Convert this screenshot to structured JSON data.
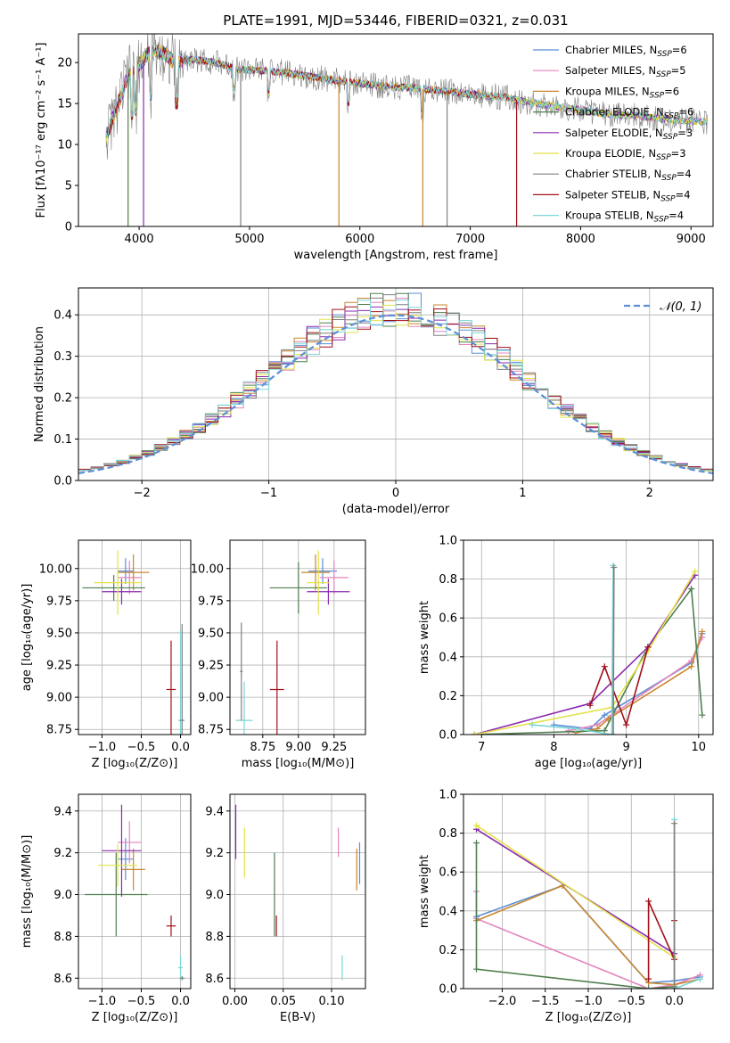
{
  "colors": {
    "Chabrier MILES": "#5b8fd6",
    "Salpeter MILES": "#e485bd",
    "Kroupa MILES": "#c8862e",
    "Chabrier ELODIE": "#4f7f4f",
    "Salpeter ELODIE": "#8b2ab0",
    "Kroupa ELODIE": "#e3e34a",
    "Chabrier STELIB": "#7f7f7f",
    "Salpeter STELIB": "#a0101a",
    "Kroupa STELIB": "#7fd6d6",
    "fit_orange": "#e07b2a",
    "normal_curve": "#5b8fd6"
  },
  "chart_data": [
    {
      "id": "spectrum",
      "type": "line",
      "title": "PLATE=1991, MJD=53446, FIBERID=0321, z=0.031",
      "xlabel": "wavelength [Angstrom, rest frame]",
      "ylabel": "Flux [fλ10⁻¹⁷ erg cm⁻² s⁻¹ A⁻¹]",
      "xlim": [
        3450,
        9200
      ],
      "ylim": [
        0,
        23.5
      ],
      "xticks": [
        4000,
        5000,
        6000,
        7000,
        8000,
        9000
      ],
      "yticks": [
        0,
        5,
        10,
        15,
        20
      ],
      "grid": false,
      "legend_position": "top-right",
      "continuum": {
        "x": [
          3700,
          3800,
          3900,
          4000,
          4100,
          4200,
          4300,
          4500,
          4700,
          4900,
          5100,
          5300,
          5500,
          5700,
          5900,
          6100,
          6300,
          6500,
          6700,
          6900,
          7100,
          7300,
          7500,
          7700,
          7900,
          8100,
          8300,
          8500,
          8700,
          8900,
          9100
        ],
        "y": [
          11,
          14.5,
          18.5,
          19.8,
          21.3,
          21.4,
          20.2,
          20.4,
          20.0,
          19.2,
          19.0,
          18.8,
          18.4,
          18.0,
          17.6,
          17.3,
          17.0,
          16.9,
          16.6,
          16.3,
          16.0,
          15.8,
          15.2,
          14.8,
          14.4,
          14.0,
          13.6,
          13.5,
          13.2,
          13.0,
          12.8
        ]
      },
      "series": [
        {
          "name": "Chabrier MILES, N_SSP=6"
        },
        {
          "name": "Salpeter MILES, N_SSP=5"
        },
        {
          "name": "Kroupa MILES, N_SSP=6"
        },
        {
          "name": "Chabrier ELODIE, N_SSP=6"
        },
        {
          "name": "Salpeter ELODIE, N_SSP=3"
        },
        {
          "name": "Kroupa ELODIE, N_SSP=3"
        },
        {
          "name": "Chabrier STELIB, N_SSP=4"
        },
        {
          "name": "Salpeter STELIB, N_SSP=4"
        },
        {
          "name": "Kroupa STELIB, N_SSP=4"
        }
      ],
      "legend_entries": [
        {
          "prefix": "Chabrier MILES, N",
          "sub": "SSP",
          "suffix": "=6"
        },
        {
          "prefix": "Salpeter MILES, N",
          "sub": "SSP",
          "suffix": "=5"
        },
        {
          "prefix": "Kroupa MILES, N",
          "sub": "SSP",
          "suffix": "=6"
        },
        {
          "prefix": "Chabrier ELODIE, N",
          "sub": "SSP",
          "suffix": "=6"
        },
        {
          "prefix": "Salpeter ELODIE, N",
          "sub": "SSP",
          "suffix": "=3"
        },
        {
          "prefix": "Kroupa ELODIE, N",
          "sub": "SSP",
          "suffix": "=3"
        },
        {
          "prefix": "Chabrier STELIB, N",
          "sub": "SSP",
          "suffix": "=4"
        },
        {
          "prefix": "Salpeter STELIB, N",
          "sub": "SSP",
          "suffix": "=4"
        },
        {
          "prefix": "Kroupa STELIB, N",
          "sub": "SSP",
          "suffix": "=4"
        }
      ]
    },
    {
      "id": "residuals",
      "type": "line",
      "xlabel": "(data-model)/error",
      "ylabel": "Normed distribution",
      "xlim": [
        -2.5,
        2.5
      ],
      "ylim": [
        0,
        0.465
      ],
      "xticks": [
        -2,
        -1,
        0,
        1,
        2
      ],
      "yticks": [
        0.0,
        0.1,
        0.2,
        0.3,
        0.4
      ],
      "grid": true,
      "legend": "𝒩(0, 1)",
      "legend_position": "top-right",
      "bins": {
        "start": -2.5,
        "width": 0.1,
        "count": 50
      }
    },
    {
      "id": "age_vs_Z",
      "type": "scatter",
      "xlabel": "Z [log₁₀(Z/Z⊙)]",
      "ylabel": "age  [log₁₀(age/yr)]",
      "xlim": [
        -1.3,
        0.13
      ],
      "ylim": [
        8.71,
        10.22
      ],
      "xticks": [
        -1.0,
        -0.5,
        0.0
      ],
      "yticks": [
        8.75,
        9.0,
        9.25,
        9.5,
        9.75,
        10.0
      ],
      "grid": true,
      "points": [
        {
          "series": "Chabrier MILES",
          "x": -0.7,
          "y": 9.98,
          "xerr": 0.1,
          "yerr": 0.1
        },
        {
          "series": "Salpeter MILES",
          "x": -0.65,
          "y": 9.93,
          "xerr": 0.15,
          "yerr": 0.13
        },
        {
          "series": "Kroupa MILES",
          "x": -0.6,
          "y": 9.97,
          "xerr": 0.2,
          "yerr": 0.14
        },
        {
          "series": "Chabrier ELODIE",
          "x": -0.85,
          "y": 9.85,
          "xerr": 0.4,
          "yerr": 0.1
        },
        {
          "series": "Salpeter ELODIE",
          "x": -0.75,
          "y": 9.82,
          "xerr": 0.25,
          "yerr": 0.1
        },
        {
          "series": "Kroupa ELODIE",
          "x": -0.8,
          "y": 9.89,
          "xerr": 0.3,
          "yerr": 0.25
        },
        {
          "series": "Salpeter STELIB",
          "x": -0.12,
          "y": 9.06,
          "xerr": 0.06,
          "yerr": 0.38
        },
        {
          "series": "Kroupa STELIB",
          "x": 0.0,
          "y": 8.82,
          "xerr": 0.03,
          "yerr": 0.7
        },
        {
          "series": "Chabrier STELIB",
          "x": 0.02,
          "y": 8.82,
          "xerr": 0.03,
          "yerr": 0.75
        }
      ]
    },
    {
      "id": "age_vs_mass",
      "type": "scatter",
      "xlabel": "mass [log₁₀(M/M⊙)]",
      "xlim": [
        8.52,
        9.47
      ],
      "ylim": [
        8.71,
        10.22
      ],
      "xticks": [
        8.75,
        9.0,
        9.25
      ],
      "yticks": [
        8.75,
        9.0,
        9.25,
        9.5,
        9.75,
        10.0
      ],
      "grid": true,
      "points": [
        {
          "series": "Chabrier MILES",
          "x": 9.17,
          "y": 9.98,
          "xerr": 0.1,
          "yerr": 0.1
        },
        {
          "series": "Salpeter MILES",
          "x": 9.25,
          "y": 9.93,
          "xerr": 0.1,
          "yerr": 0.13
        },
        {
          "series": "Kroupa MILES",
          "x": 9.12,
          "y": 9.97,
          "xerr": 0.1,
          "yerr": 0.14
        },
        {
          "series": "Chabrier ELODIE",
          "x": 9.0,
          "y": 9.85,
          "xerr": 0.2,
          "yerr": 0.2
        },
        {
          "series": "Salpeter ELODIE",
          "x": 9.21,
          "y": 9.82,
          "xerr": 0.15,
          "yerr": 0.1
        },
        {
          "series": "Kroupa ELODIE",
          "x": 9.14,
          "y": 9.89,
          "xerr": 0.08,
          "yerr": 0.25
        },
        {
          "series": "Salpeter STELIB",
          "x": 8.85,
          "y": 9.06,
          "xerr": 0.05,
          "yerr": 0.38
        },
        {
          "series": "Kroupa STELIB",
          "x": 8.62,
          "y": 8.82,
          "xerr": 0.06,
          "yerr": 0.3
        },
        {
          "series": "Chabrier STELIB",
          "x": 8.6,
          "y": 9.2,
          "xerr": 0.01,
          "yerr": 0.38
        }
      ]
    },
    {
      "id": "weight_vs_age",
      "type": "line",
      "xlabel": "age  [log₁₀(age/yr)]",
      "ylabel": "mass weight",
      "xlim": [
        6.75,
        10.2
      ],
      "ylim": [
        0,
        1.0
      ],
      "xticks": [
        7,
        8,
        9,
        10
      ],
      "yticks": [
        0.0,
        0.2,
        0.4,
        0.6,
        0.8,
        1.0
      ],
      "grid": true,
      "series": [
        {
          "series": "Chabrier MILES",
          "x": [
            8.0,
            8.5,
            8.7,
            9.9,
            10.05
          ],
          "y": [
            0.05,
            0.03,
            0.1,
            0.37,
            0.52
          ]
        },
        {
          "series": "Salpeter MILES",
          "x": [
            8.2,
            8.6,
            8.8,
            9.9,
            10.05
          ],
          "y": [
            0.02,
            0.05,
            0.1,
            0.38,
            0.5
          ]
        },
        {
          "series": "Kroupa MILES",
          "x": [
            8.3,
            8.6,
            8.75,
            9.9,
            10.05
          ],
          "y": [
            0.01,
            0.03,
            0.08,
            0.35,
            0.53
          ]
        },
        {
          "series": "Chabrier ELODIE",
          "x": [
            6.9,
            8.7,
            9.3,
            9.9,
            10.05
          ],
          "y": [
            0.0,
            0.02,
            0.45,
            0.75,
            0.1
          ]
        },
        {
          "series": "Salpeter ELODIE",
          "x": [
            6.9,
            8.5,
            9.3,
            9.95
          ],
          "y": [
            0.0,
            0.16,
            0.45,
            0.82
          ]
        },
        {
          "series": "Kroupa ELODIE",
          "x": [
            6.9,
            8.8,
            9.3,
            9.95
          ],
          "y": [
            0.0,
            0.14,
            0.43,
            0.84
          ]
        },
        {
          "series": "Salpeter STELIB",
          "x": [
            8.5,
            8.7,
            9.0,
            9.3
          ],
          "y": [
            0.15,
            0.35,
            0.05,
            0.45
          ]
        },
        {
          "series": "Kroupa STELIB",
          "x": [
            7.7,
            8.3,
            8.8,
            8.82
          ],
          "y": [
            0.05,
            0.03,
            0.0,
            0.87
          ]
        },
        {
          "series": "Chabrier STELIB",
          "x": [
            8.82,
            8.83
          ],
          "y": [
            0.0,
            0.86
          ]
        }
      ]
    },
    {
      "id": "mass_vs_Z",
      "type": "scatter",
      "xlabel": "Z [log₁₀(Z/Z⊙)]",
      "ylabel": "mass [log₁₀(M/M⊙)]",
      "xlim": [
        -1.3,
        0.13
      ],
      "ylim": [
        8.55,
        9.48
      ],
      "xticks": [
        -1.0,
        -0.5,
        0.0
      ],
      "yticks": [
        8.6,
        8.8,
        9.0,
        9.2,
        9.4
      ],
      "grid": true,
      "points": [
        {
          "series": "Chabrier MILES",
          "x": -0.7,
          "y": 9.17,
          "xerr": 0.1,
          "yerr": 0.1
        },
        {
          "series": "Salpeter MILES",
          "x": -0.65,
          "y": 9.25,
          "xerr": 0.15,
          "yerr": 0.1
        },
        {
          "series": "Kroupa MILES",
          "x": -0.6,
          "y": 9.12,
          "xerr": 0.15,
          "yerr": 0.1
        },
        {
          "series": "Chabrier ELODIE",
          "x": -0.82,
          "y": 9.0,
          "xerr": 0.4,
          "yerr": 0.2
        },
        {
          "series": "Salpeter ELODIE",
          "x": -0.75,
          "y": 9.21,
          "xerr": 0.25,
          "yerr": 0.22
        },
        {
          "series": "Kroupa ELODIE",
          "x": -0.8,
          "y": 9.14,
          "xerr": 0.25,
          "yerr": 0.1
        },
        {
          "series": "Salpeter STELIB",
          "x": -0.12,
          "y": 8.85,
          "xerr": 0.06,
          "yerr": 0.05
        },
        {
          "series": "Kroupa STELIB",
          "x": 0.0,
          "y": 8.65,
          "xerr": 0.03,
          "yerr": 0.06
        },
        {
          "series": "Chabrier STELIB",
          "x": 0.02,
          "y": 8.6,
          "xerr": 0.03,
          "yerr": 0.01
        }
      ]
    },
    {
      "id": "mass_vs_ebv",
      "type": "scatter",
      "xlabel": "E(B-V)",
      "xlim": [
        -0.005,
        0.135
      ],
      "ylim": [
        8.55,
        9.48
      ],
      "xticks": [
        0.0,
        0.05,
        0.1
      ],
      "yticks": [
        8.6,
        8.8,
        9.0,
        9.2,
        9.4
      ],
      "grid": true,
      "points": [
        {
          "series": "Salpeter ELODIE",
          "x": 0.001,
          "y": 9.3,
          "xerr": 0.0,
          "yerr": 0.13
        },
        {
          "series": "Kroupa ELODIE",
          "x": 0.01,
          "y": 9.2,
          "xerr": 0.0,
          "yerr": 0.12
        },
        {
          "series": "Chabrier ELODIE",
          "x": 0.041,
          "y": 9.0,
          "xerr": 0.0,
          "yerr": 0.2
        },
        {
          "series": "Salpeter STELIB",
          "x": 0.043,
          "y": 8.85,
          "xerr": 0.0,
          "yerr": 0.05
        },
        {
          "series": "Salpeter MILES",
          "x": 0.107,
          "y": 9.25,
          "xerr": 0.0,
          "yerr": 0.07
        },
        {
          "series": "Kroupa STELIB",
          "x": 0.111,
          "y": 8.65,
          "xerr": 0.0,
          "yerr": 0.06
        },
        {
          "series": "Kroupa MILES",
          "x": 0.126,
          "y": 9.12,
          "xerr": 0.0,
          "yerr": 0.1
        },
        {
          "series": "Chabrier MILES",
          "x": 0.129,
          "y": 9.15,
          "xerr": 0.0,
          "yerr": 0.1
        }
      ]
    },
    {
      "id": "weight_vs_Z",
      "type": "line",
      "xlabel": "Z [log₁₀(Z/Z⊙)]",
      "ylabel": "mass weight",
      "xlim": [
        -2.45,
        0.45
      ],
      "ylim": [
        0,
        1.0
      ],
      "xticks": [
        -2.0,
        -1.5,
        -1.0,
        -0.5,
        0.0
      ],
      "yticks": [
        0.0,
        0.2,
        0.4,
        0.6,
        0.8,
        1.0
      ],
      "grid": true,
      "series": [
        {
          "series": "Chabrier MILES",
          "x": [
            -2.3,
            -1.3,
            -0.3,
            0.0,
            0.3
          ],
          "y": [
            0.37,
            0.53,
            0.03,
            0.04,
            0.06
          ]
        },
        {
          "series": "Salpeter MILES",
          "x": [
            -2.3,
            -2.3,
            -0.3,
            0.0,
            0.3
          ],
          "y": [
            0.5,
            0.36,
            0.0,
            0.02,
            0.07
          ]
        },
        {
          "series": "Kroupa MILES",
          "x": [
            -2.3,
            -1.3,
            -0.3,
            0.0,
            0.3
          ],
          "y": [
            0.35,
            0.53,
            0.03,
            0.02,
            0.05
          ]
        },
        {
          "series": "Chabrier ELODIE",
          "x": [
            -2.3,
            -2.3,
            -0.3,
            0.0
          ],
          "y": [
            0.75,
            0.1,
            0.0,
            0.01
          ]
        },
        {
          "series": "Salpeter ELODIE",
          "x": [
            -2.3,
            0.0,
            0.0
          ],
          "y": [
            0.82,
            0.18,
            0.0
          ]
        },
        {
          "series": "Kroupa ELODIE",
          "x": [
            -2.3,
            0.0,
            0.0
          ],
          "y": [
            0.84,
            0.16,
            0.0
          ]
        },
        {
          "series": "Salpeter STELIB",
          "x": [
            -0.3,
            -0.3,
            0.0,
            0.0
          ],
          "y": [
            0.05,
            0.45,
            0.15,
            0.35
          ]
        },
        {
          "series": "Kroupa STELIB",
          "x": [
            0.0,
            0.0,
            0.3
          ],
          "y": [
            0.87,
            0.0,
            0.05
          ]
        },
        {
          "series": "Chabrier STELIB",
          "x": [
            0.0,
            0.0
          ],
          "y": [
            0.0,
            0.85
          ]
        }
      ]
    }
  ]
}
